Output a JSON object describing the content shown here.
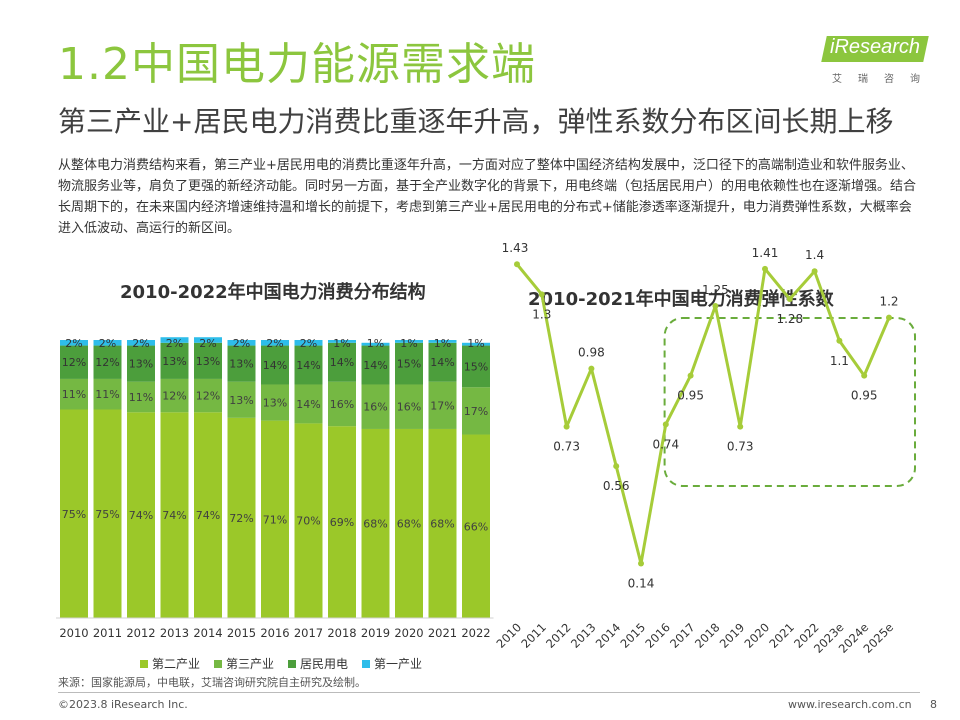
{
  "header": {
    "title": "1.2中国电力能源需求端",
    "subtitle": "第三产业+居民电力消费比重逐年升高，弹性系数分布区间长期上移"
  },
  "logo": {
    "text": "iResearch",
    "sub": "艾瑞咨询"
  },
  "body": {
    "paragraph": "从整体电力消费结构来看，第三产业+居民用电的消费比重逐年升高，一方面对应了整体中国经济结构发展中，泛口径下的高端制造业和软件服务业、物流服务业等，肩负了更强的新经济动能。同时另一方面，基于全产业数字化的背景下，用电终端（包括居民用户）的用电依赖性也在逐渐增强。结合长周期下的，在未来国内经济增速维持温和增长的前提下，考虑到第三产业+居民用电的分布式+储能渗透率逐渐提升，电力消费弹性系数，大概率会进入低波动、高运行的新区间。"
  },
  "colors": {
    "secondary": "#9bc829",
    "tertiary": "#75b843",
    "residential": "#4c9e3c",
    "primary": "#2ebdea",
    "line": "#a6cc39",
    "highlight": "#6aac3c"
  },
  "chart_data": [
    {
      "type": "bar",
      "stacked": true,
      "title": "2010-2022年中国电力消费分布结构",
      "categories": [
        "2010",
        "2011",
        "2012",
        "2013",
        "2014",
        "2015",
        "2016",
        "2017",
        "2018",
        "2019",
        "2020",
        "2021",
        "2022"
      ],
      "series": [
        {
          "name": "第二产业",
          "values": [
            75,
            75,
            74,
            74,
            74,
            72,
            71,
            70,
            69,
            68,
            68,
            68,
            66
          ],
          "labels": [
            "75%",
            "75%",
            "74%",
            "74%",
            "74%",
            "72%",
            "71%",
            "70%",
            "69%",
            "68%",
            "68%",
            "68%",
            "66%"
          ]
        },
        {
          "name": "第三产业",
          "values": [
            11,
            11,
            11,
            12,
            12,
            13,
            13,
            14,
            16,
            16,
            16,
            17,
            17
          ],
          "labels": [
            "11%",
            "11%",
            "11%",
            "12%",
            "12%",
            "13%",
            "13%",
            "14%",
            "16%",
            "16%",
            "16%",
            "17%",
            "17%"
          ]
        },
        {
          "name": "居民用电",
          "values": [
            12,
            12,
            13,
            13,
            13,
            13,
            14,
            14,
            14,
            14,
            15,
            14,
            15
          ],
          "labels": [
            "12%",
            "12%",
            "13%",
            "13%",
            "13%",
            "13%",
            "14%",
            "14%",
            "14%",
            "14%",
            "15%",
            "14%",
            "15%"
          ]
        },
        {
          "name": "第一产业",
          "values": [
            2,
            2,
            2,
            2,
            2,
            2,
            2,
            2,
            1,
            1,
            1,
            1,
            1
          ],
          "labels": [
            "2%",
            "2%",
            "2%",
            "2%",
            "2%",
            "2%",
            "2%",
            "2%",
            "1%",
            "1%",
            "1%",
            "1%",
            "1%"
          ]
        }
      ],
      "legend_position": "bottom"
    },
    {
      "type": "line",
      "title": "2010-2021年中国电力消费弹性系数",
      "categories": [
        "2010",
        "2011",
        "2012",
        "2013",
        "2014",
        "2015",
        "2016",
        "2017",
        "2018",
        "2019",
        "2020",
        "2021",
        "2022",
        "2023e",
        "2024e",
        "2025e"
      ],
      "values": [
        1.43,
        1.3,
        0.73,
        0.98,
        0.56,
        0.14,
        0.74,
        0.95,
        1.25,
        0.73,
        1.41,
        1.28,
        1.4,
        1.1,
        0.95,
        1.2
      ],
      "labels": [
        "1.43",
        "1.3",
        "0.73",
        "0.98",
        "0.56",
        "0.14",
        "0.74",
        "0.95",
        "1.25",
        "0.73",
        "1.41",
        "1.28",
        "1.4",
        "1.1",
        "0.95",
        "1.2"
      ],
      "highlight_from": "2017",
      "highlight_to": "2025e"
    }
  ],
  "legend": {
    "items": [
      "第二产业",
      "第三产业",
      "居民用电",
      "第一产业"
    ]
  },
  "footer": {
    "source": "来源：国家能源局，中电联，艾瑞咨询研究院自主研究及绘制。",
    "copyright": "©2023.8 iResearch Inc.",
    "website": "www.iresearch.com.cn",
    "page": "8"
  }
}
